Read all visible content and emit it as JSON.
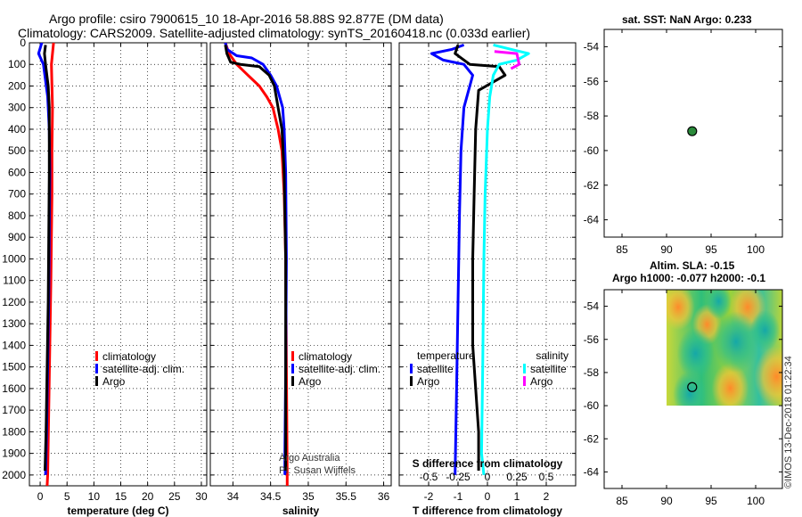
{
  "title_line1": "Argo profile: csiro 7900615_10 18-Apr-2016 58.88S 92.877E (DM data)",
  "title_line2": "Climatology: CARS2009. Satellite-adjusted climatology: synTS_20160418.nc (0.033d earlier)",
  "credit_line1": "Argo Australia",
  "credit_line2": "PI: Susan Wijffels",
  "watermark": "©IMOS 13-Dec-2018 01:22:34",
  "colors": {
    "climatology": "#ff0000",
    "satellite": "#0000ff",
    "argo": "#000000",
    "sat_salinity": "#00ffff",
    "argo_salinity": "#ff00ff"
  },
  "chart_data": [
    {
      "id": "temperature",
      "type": "line",
      "xlabel": "temperature (deg C)",
      "ylabel": "",
      "xlim": [
        -2,
        31
      ],
      "ylim": [
        2050,
        0
      ],
      "xticks": [
        0,
        5,
        10,
        15,
        20,
        25,
        30
      ],
      "yticks": [
        0,
        100,
        200,
        300,
        400,
        500,
        600,
        700,
        800,
        900,
        1000,
        1100,
        1200,
        1300,
        1400,
        1500,
        1600,
        1700,
        1800,
        1900,
        2000
      ],
      "grid": true,
      "legend_position": "lower-right",
      "series": [
        {
          "name": "climatology",
          "color": "#ff0000",
          "points": [
            [
              2.5,
              0
            ],
            [
              2.3,
              50
            ],
            [
              2.1,
              100
            ],
            [
              2.2,
              200
            ],
            [
              2.3,
              300
            ],
            [
              2.2,
              500
            ],
            [
              2.2,
              700
            ],
            [
              2.1,
              900
            ],
            [
              2.0,
              1100
            ],
            [
              1.8,
              1400
            ],
            [
              1.6,
              1700
            ],
            [
              1.4,
              2000
            ],
            [
              1.3,
              2050
            ]
          ]
        },
        {
          "name": "satellite-adj. clim.",
          "color": "#0000ff",
          "points": [
            [
              0.3,
              0
            ],
            [
              -0.3,
              50
            ],
            [
              0.6,
              100
            ],
            [
              1.4,
              250
            ],
            [
              1.7,
              400
            ],
            [
              1.8,
              600
            ],
            [
              1.7,
              900
            ],
            [
              1.6,
              1200
            ],
            [
              1.4,
              1500
            ],
            [
              1.2,
              1800
            ],
            [
              1.0,
              2000
            ]
          ]
        },
        {
          "name": "Argo",
          "color": "#000000",
          "points": [
            [
              1.0,
              10
            ],
            [
              0.8,
              50
            ],
            [
              1.0,
              100
            ],
            [
              1.5,
              200
            ],
            [
              1.7,
              300
            ],
            [
              1.7,
              400
            ],
            [
              1.7,
              600
            ],
            [
              1.6,
              900
            ],
            [
              1.5,
              1200
            ],
            [
              1.3,
              1500
            ],
            [
              1.1,
              1800
            ],
            [
              0.9,
              1980
            ]
          ]
        }
      ]
    },
    {
      "id": "salinity",
      "type": "line",
      "xlabel": "salinity",
      "ylabel": "",
      "xlim": [
        33.7,
        36.1
      ],
      "ylim": [
        2050,
        0
      ],
      "xticks": [
        34,
        34.5,
        35,
        35.5,
        36
      ],
      "grid": true,
      "legend_position": "lower-right",
      "series": [
        {
          "name": "climatology",
          "color": "#ff0000",
          "points": [
            [
              33.9,
              0
            ],
            [
              33.95,
              50
            ],
            [
              34.05,
              100
            ],
            [
              34.2,
              150
            ],
            [
              34.35,
              200
            ],
            [
              34.45,
              250
            ],
            [
              34.53,
              300
            ],
            [
              34.6,
              400
            ],
            [
              34.65,
              500
            ],
            [
              34.68,
              700
            ],
            [
              34.7,
              1000
            ],
            [
              34.71,
              1500
            ],
            [
              34.72,
              2000
            ],
            [
              34.72,
              2050
            ]
          ]
        },
        {
          "name": "satellite-adj. clim.",
          "color": "#0000ff",
          "points": [
            [
              33.9,
              0
            ],
            [
              33.92,
              30
            ],
            [
              34.05,
              60
            ],
            [
              34.25,
              70
            ],
            [
              34.4,
              100
            ],
            [
              34.5,
              150
            ],
            [
              34.58,
              200
            ],
            [
              34.62,
              250
            ],
            [
              34.66,
              300
            ],
            [
              34.68,
              400
            ],
            [
              34.7,
              600
            ],
            [
              34.71,
              1000
            ],
            [
              34.7,
              1500
            ],
            [
              34.69,
              1900
            ],
            [
              34.69,
              2000
            ]
          ]
        },
        {
          "name": "Argo",
          "color": "#000000",
          "points": [
            [
              33.9,
              10
            ],
            [
              33.92,
              50
            ],
            [
              33.97,
              90
            ],
            [
              34.1,
              100
            ],
            [
              34.35,
              110
            ],
            [
              34.48,
              150
            ],
            [
              34.55,
              200
            ],
            [
              34.6,
              300
            ],
            [
              34.65,
              400
            ],
            [
              34.68,
              600
            ],
            [
              34.7,
              1000
            ],
            [
              34.7,
              1500
            ],
            [
              34.7,
              1980
            ]
          ]
        }
      ]
    },
    {
      "id": "difference",
      "type": "line",
      "xlabel": "T difference from climatology",
      "xlabel2": "S difference from climatology",
      "xlim": [
        -3,
        3
      ],
      "x2lim": [
        -0.75,
        0.75
      ],
      "ylim": [
        2050,
        0
      ],
      "xticks": [
        -2,
        -1,
        0,
        1,
        2
      ],
      "x2ticks": [
        -0.5,
        -0.25,
        0,
        0.25,
        0.5
      ],
      "x2ticklabels": [
        "-0.5",
        "-0.25",
        "0",
        "0.25",
        "0.5"
      ],
      "grid": true,
      "legend_left_title": "temperature",
      "legend_right_title": "salinity",
      "series": [
        {
          "name": "satellite",
          "quantity": "temperature",
          "color": "#0000ff",
          "points": [
            [
              -0.8,
              10
            ],
            [
              -1.2,
              30
            ],
            [
              -1.9,
              50
            ],
            [
              -1.5,
              80
            ],
            [
              -0.8,
              100
            ],
            [
              -0.5,
              150
            ],
            [
              -0.8,
              300
            ],
            [
              -0.9,
              500
            ],
            [
              -0.95,
              800
            ],
            [
              -1.0,
              1200
            ],
            [
              -1.05,
              1600
            ],
            [
              -1.1,
              2000
            ]
          ]
        },
        {
          "name": "Argo",
          "quantity": "temperature",
          "color": "#000000",
          "points": [
            [
              -1.0,
              10
            ],
            [
              -1.1,
              50
            ],
            [
              -0.6,
              100
            ],
            [
              0.4,
              110
            ],
            [
              0.6,
              150
            ],
            [
              -0.3,
              220
            ],
            [
              -0.4,
              400
            ],
            [
              -0.45,
              700
            ],
            [
              -0.5,
              1000
            ],
            [
              -0.5,
              1400
            ],
            [
              -0.3,
              1800
            ],
            [
              -0.3,
              1980
            ]
          ]
        },
        {
          "name": "satellite",
          "quantity": "salinity",
          "color": "#00ffff",
          "points": [
            [
              0.05,
              10
            ],
            [
              0.2,
              30
            ],
            [
              0.35,
              50
            ],
            [
              0.25,
              80
            ],
            [
              0.1,
              100
            ],
            [
              0.05,
              150
            ],
            [
              0.02,
              250
            ],
            [
              0.0,
              400
            ],
            [
              -0.02,
              700
            ],
            [
              -0.03,
              1000
            ],
            [
              -0.04,
              1500
            ],
            [
              -0.05,
              1900
            ],
            [
              -0.03,
              2000
            ]
          ]
        },
        {
          "name": "Argo",
          "quantity": "salinity",
          "color": "#ff00ff",
          "points": [
            [
              0.06,
              40
            ],
            [
              0.25,
              50
            ],
            [
              0.27,
              100
            ],
            [
              0.2,
              120
            ]
          ]
        }
      ]
    },
    {
      "id": "sst_map",
      "type": "scatter",
      "title": "sat. SST: NaN Argo: 0.233",
      "xlim": [
        83,
        103
      ],
      "ylim": [
        -65,
        -53
      ],
      "xticks": [
        85,
        90,
        95,
        100
      ],
      "yticks": [
        -54,
        -56,
        -58,
        -60,
        -62,
        -64
      ],
      "points": [
        [
          92.877,
          -58.88
        ]
      ]
    },
    {
      "id": "sla_map",
      "type": "heatmap",
      "title_line1": "Altim. SLA: -0.15",
      "title_line2": "Argo h1000: -0.077 h2000: -0.1",
      "xlim": [
        83,
        103
      ],
      "ylim": [
        -65,
        -53
      ],
      "xticks": [
        85,
        90,
        95,
        100
      ],
      "yticks": [
        -54,
        -56,
        -58,
        -60,
        -62,
        -64
      ],
      "field_extent": {
        "lon": [
          90,
          103
        ],
        "lat": [
          -60,
          -53
        ]
      },
      "points": [
        [
          92.877,
          -58.88
        ]
      ]
    }
  ]
}
